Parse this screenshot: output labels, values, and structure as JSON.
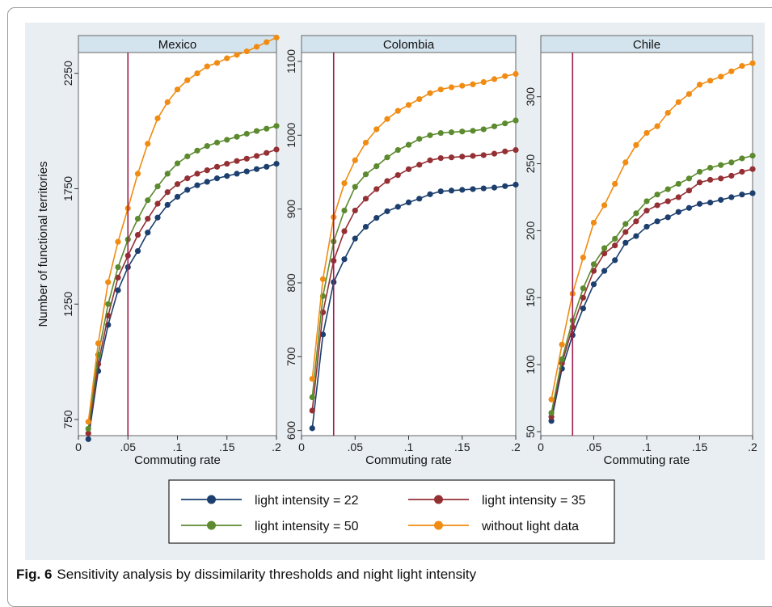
{
  "caption": {
    "label": "Fig. 6",
    "text": "Sensitivity analysis by dissimilarity thresholds and night light intensity"
  },
  "colors": {
    "panel_bg": "#e8eef2",
    "strip_bg": "#d4e4ef",
    "threshold_line": "#a01e4f",
    "series": [
      "#1c3f6e",
      "#943034",
      "#5c8a2e",
      "#f08c13"
    ]
  },
  "chart_data": [
    {
      "type": "line",
      "title": "Mexico",
      "xlabel": "Commuting rate",
      "ylabel": "Number of functional territories",
      "xlim": [
        0,
        0.2
      ],
      "ylim": [
        680,
        2340
      ],
      "xticks": [
        0,
        0.05,
        0.1,
        0.15,
        0.2
      ],
      "xtick_labels": [
        "0",
        ".05",
        ".1",
        ".15",
        ".2"
      ],
      "yticks": [
        750,
        1250,
        1750,
        2250
      ],
      "ytick_labels": [
        "750",
        "1250",
        "1750",
        "2250"
      ],
      "vline": 0.05,
      "x": [
        0.01,
        0.02,
        0.03,
        0.04,
        0.05,
        0.06,
        0.07,
        0.08,
        0.09,
        0.1,
        0.11,
        0.12,
        0.13,
        0.14,
        0.15,
        0.16,
        0.17,
        0.18,
        0.19,
        0.2
      ],
      "series": [
        {
          "name": "light intensity = 22",
          "values": [
            665,
            960,
            1160,
            1310,
            1410,
            1480,
            1560,
            1625,
            1680,
            1715,
            1745,
            1765,
            1780,
            1795,
            1805,
            1815,
            1825,
            1835,
            1845,
            1858
          ]
        },
        {
          "name": "light intensity = 35",
          "values": [
            690,
            990,
            1200,
            1365,
            1460,
            1550,
            1620,
            1685,
            1735,
            1770,
            1795,
            1815,
            1830,
            1845,
            1858,
            1870,
            1880,
            1892,
            1905,
            1920
          ]
        },
        {
          "name": "light intensity = 50",
          "values": [
            710,
            1030,
            1250,
            1410,
            1530,
            1620,
            1700,
            1760,
            1815,
            1860,
            1890,
            1915,
            1935,
            1950,
            1962,
            1975,
            1988,
            2000,
            2010,
            2022
          ]
        },
        {
          "name": "without light data",
          "values": [
            740,
            1080,
            1345,
            1520,
            1665,
            1815,
            1945,
            2055,
            2125,
            2180,
            2220,
            2250,
            2280,
            2295,
            2315,
            2330,
            2345,
            2365,
            2385,
            2405
          ]
        }
      ]
    },
    {
      "type": "line",
      "title": "Colombia",
      "xlabel": "Commuting rate",
      "ylabel": "",
      "xlim": [
        0,
        0.2
      ],
      "ylim": [
        593,
        1112
      ],
      "xticks": [
        0,
        0.05,
        0.1,
        0.15,
        0.2
      ],
      "xtick_labels": [
        "0",
        ".05",
        ".1",
        ".15",
        ".2"
      ],
      "yticks": [
        600,
        700,
        800,
        900,
        1000,
        1100
      ],
      "ytick_labels": [
        "600",
        "700",
        "800",
        "900",
        "1000",
        "1100"
      ],
      "vline": 0.03,
      "x": [
        0.01,
        0.02,
        0.03,
        0.04,
        0.05,
        0.06,
        0.07,
        0.08,
        0.09,
        0.1,
        0.11,
        0.12,
        0.13,
        0.14,
        0.15,
        0.16,
        0.17,
        0.18,
        0.19,
        0.2
      ],
      "series": [
        {
          "name": "light intensity = 22",
          "values": [
            603,
            730,
            801,
            832,
            860,
            876,
            888,
            897,
            903,
            909,
            914,
            920,
            924,
            925,
            926,
            927,
            928,
            929,
            931,
            933
          ]
        },
        {
          "name": "light intensity = 35",
          "values": [
            627,
            760,
            830,
            870,
            898,
            914,
            927,
            938,
            946,
            954,
            960,
            966,
            969,
            970,
            971,
            972,
            973,
            975,
            978,
            980
          ]
        },
        {
          "name": "light intensity = 50",
          "values": [
            645,
            782,
            856,
            898,
            930,
            947,
            958,
            970,
            980,
            987,
            995,
            1000,
            1003,
            1004,
            1005,
            1006,
            1008,
            1012,
            1016,
            1020
          ]
        },
        {
          "name": "without light data",
          "values": [
            670,
            805,
            889,
            935,
            966,
            990,
            1008,
            1022,
            1033,
            1041,
            1049,
            1057,
            1062,
            1065,
            1067,
            1069,
            1072,
            1076,
            1080,
            1083
          ]
        }
      ]
    },
    {
      "type": "line",
      "title": "Chile",
      "xlabel": "Commuting rate",
      "ylabel": "",
      "xlim": [
        0,
        0.2
      ],
      "ylim": [
        47,
        333
      ],
      "xticks": [
        0,
        0.05,
        0.1,
        0.15,
        0.2
      ],
      "xtick_labels": [
        "0",
        ".05",
        ".1",
        ".15",
        ".2"
      ],
      "yticks": [
        50,
        100,
        150,
        200,
        250,
        300
      ],
      "ytick_labels": [
        "50",
        "100",
        "150",
        "200",
        "250",
        "300"
      ],
      "vline": 0.03,
      "x": [
        0.01,
        0.02,
        0.03,
        0.04,
        0.05,
        0.06,
        0.07,
        0.08,
        0.09,
        0.1,
        0.11,
        0.12,
        0.13,
        0.14,
        0.15,
        0.16,
        0.17,
        0.18,
        0.19,
        0.2
      ],
      "series": [
        {
          "name": "light intensity = 22",
          "values": [
            58,
            97,
            122,
            142,
            160,
            170,
            178,
            191,
            196,
            203,
            207,
            210,
            214,
            217,
            220,
            221,
            223,
            225,
            227,
            228
          ]
        },
        {
          "name": "light intensity = 35",
          "values": [
            61,
            101,
            128,
            150,
            170,
            183,
            189,
            199,
            207,
            215,
            219,
            222,
            225,
            230,
            236,
            238,
            239,
            241,
            244,
            246
          ]
        },
        {
          "name": "light intensity = 50",
          "values": [
            64,
            104,
            133,
            157,
            175,
            187,
            194,
            205,
            213,
            222,
            227,
            231,
            235,
            239,
            244,
            247,
            249,
            251,
            254,
            256
          ]
        },
        {
          "name": "without light data",
          "values": [
            74,
            115,
            153,
            180,
            206,
            219,
            235,
            251,
            264,
            273,
            278,
            288,
            296,
            302,
            309,
            312,
            315,
            319,
            323,
            325
          ]
        }
      ]
    }
  ]
}
